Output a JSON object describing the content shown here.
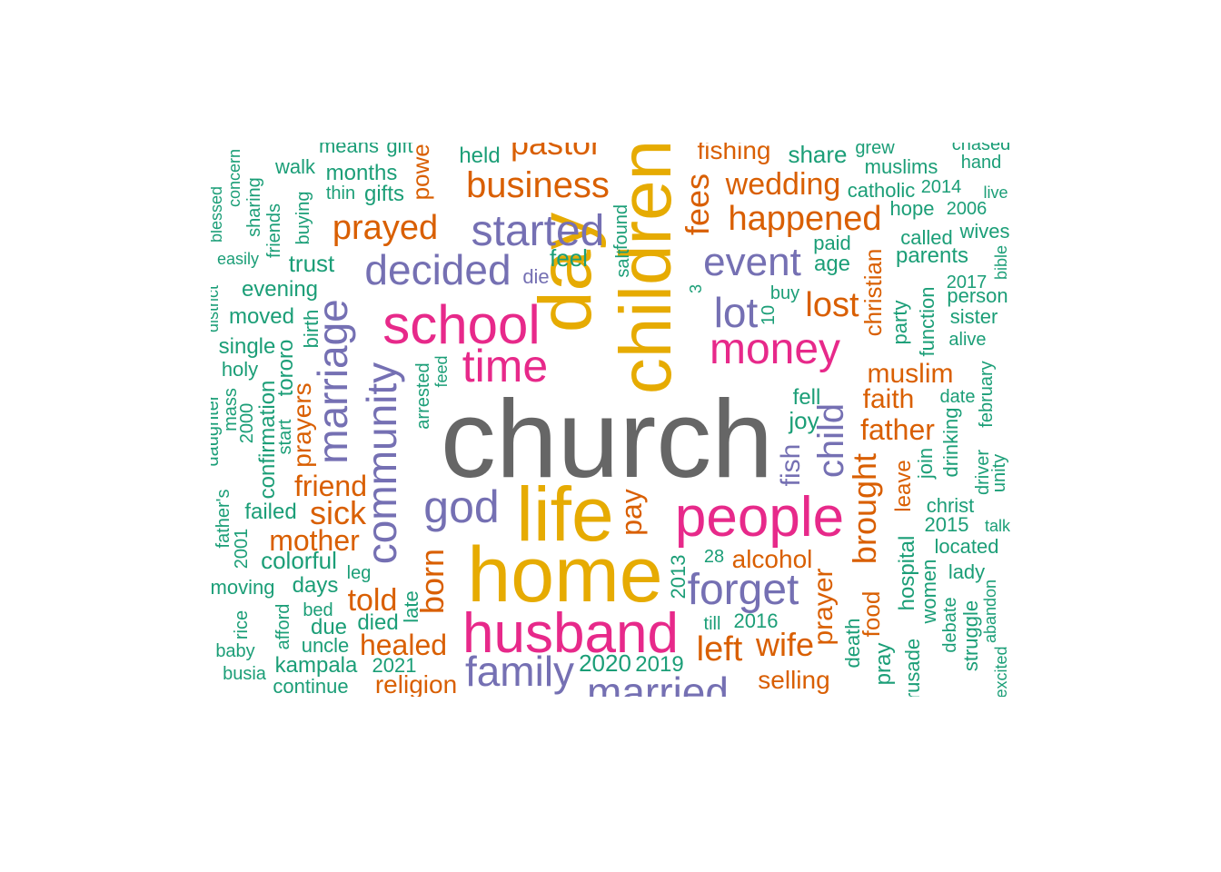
{
  "chart_data": {
    "type": "wordcloud",
    "title": "",
    "colors": {
      "gray": "#666666",
      "orange": "#D95F02",
      "purple": "#7570B3",
      "pink": "#E7298A",
      "gold": "#E6AB02",
      "green": "#1B9E77"
    },
    "words": [
      {
        "text": "church",
        "weight": 100,
        "color": "gray"
      },
      {
        "text": "home",
        "weight": 68,
        "color": "gold"
      },
      {
        "text": "life",
        "weight": 64,
        "color": "gold"
      },
      {
        "text": "day",
        "weight": 62,
        "color": "gold"
      },
      {
        "text": "children",
        "weight": 60,
        "color": "gold"
      },
      {
        "text": "husband",
        "weight": 52,
        "color": "pink"
      },
      {
        "text": "people",
        "weight": 52,
        "color": "pink"
      },
      {
        "text": "school",
        "weight": 50,
        "color": "pink"
      },
      {
        "text": "money",
        "weight": 42,
        "color": "pink"
      },
      {
        "text": "time",
        "weight": 42,
        "color": "pink"
      },
      {
        "text": "community",
        "weight": 42,
        "color": "purple"
      },
      {
        "text": "marriage",
        "weight": 42,
        "color": "purple"
      },
      {
        "text": "god",
        "weight": 40,
        "color": "purple"
      },
      {
        "text": "family",
        "weight": 40,
        "color": "purple"
      },
      {
        "text": "forget",
        "weight": 40,
        "color": "purple"
      },
      {
        "text": "decided",
        "weight": 40,
        "color": "purple"
      },
      {
        "text": "started",
        "weight": 40,
        "color": "purple"
      },
      {
        "text": "event",
        "weight": 38,
        "color": "purple"
      },
      {
        "text": "married",
        "weight": 38,
        "color": "purple"
      },
      {
        "text": "lot",
        "weight": 38,
        "color": "purple"
      },
      {
        "text": "child",
        "weight": 36,
        "color": "purple"
      },
      {
        "text": "business",
        "weight": 32,
        "color": "orange"
      },
      {
        "text": "happened",
        "weight": 32,
        "color": "orange"
      },
      {
        "text": "prayed",
        "weight": 32,
        "color": "orange"
      },
      {
        "text": "lost",
        "weight": 32,
        "color": "orange"
      },
      {
        "text": "pastor",
        "weight": 32,
        "color": "orange"
      },
      {
        "text": "sick",
        "weight": 30,
        "color": "orange"
      },
      {
        "text": "fees",
        "weight": 30,
        "color": "orange"
      },
      {
        "text": "left",
        "weight": 30,
        "color": "orange"
      },
      {
        "text": "born",
        "weight": 30,
        "color": "orange"
      },
      {
        "text": "brought",
        "weight": 30,
        "color": "orange"
      },
      {
        "text": "wedding",
        "weight": 28,
        "color": "orange"
      },
      {
        "text": "mother",
        "weight": 28,
        "color": "orange"
      },
      {
        "text": "wife",
        "weight": 28,
        "color": "orange"
      },
      {
        "text": "told",
        "weight": 28,
        "color": "orange"
      },
      {
        "text": "father",
        "weight": 28,
        "color": "orange"
      },
      {
        "text": "friend",
        "weight": 28,
        "color": "orange"
      },
      {
        "text": "healed",
        "weight": 28,
        "color": "orange"
      },
      {
        "text": "pay",
        "weight": 28,
        "color": "orange"
      },
      {
        "text": "muslim",
        "weight": 26,
        "color": "orange"
      },
      {
        "text": "faith",
        "weight": 26,
        "color": "orange"
      },
      {
        "text": "alcohol",
        "weight": 26,
        "color": "orange"
      },
      {
        "text": "religion",
        "weight": 26,
        "color": "orange"
      },
      {
        "text": "prayer",
        "weight": 26,
        "color": "orange"
      },
      {
        "text": "prayers",
        "weight": 24,
        "color": "orange"
      },
      {
        "text": "selling",
        "weight": 24,
        "color": "orange"
      },
      {
        "text": "christian",
        "weight": 22,
        "color": "orange"
      },
      {
        "text": "fishing",
        "weight": 24,
        "color": "orange"
      },
      {
        "text": "power",
        "weight": 22,
        "color": "orange"
      },
      {
        "text": "leave",
        "weight": 22,
        "color": "orange"
      },
      {
        "text": "food",
        "weight": 22,
        "color": "orange"
      },
      {
        "text": "fish",
        "weight": 24,
        "color": "purple"
      },
      {
        "text": "share",
        "weight": 22,
        "color": "green"
      },
      {
        "text": "feel",
        "weight": 22,
        "color": "green"
      },
      {
        "text": "die",
        "weight": 20,
        "color": "purple"
      },
      {
        "text": "trust",
        "weight": 22,
        "color": "green"
      },
      {
        "text": "months",
        "weight": 22,
        "color": "green"
      },
      {
        "text": "gifts",
        "weight": 22,
        "color": "green"
      },
      {
        "text": "means",
        "weight": 20,
        "color": "green"
      },
      {
        "text": "gift",
        "weight": 20,
        "color": "green"
      },
      {
        "text": "held",
        "weight": 20,
        "color": "green"
      },
      {
        "text": "evening",
        "weight": 20,
        "color": "green"
      },
      {
        "text": "moved",
        "weight": 20,
        "color": "green"
      },
      {
        "text": "single",
        "weight": 20,
        "color": "green"
      },
      {
        "text": "holy",
        "weight": 18,
        "color": "green"
      },
      {
        "text": "walk",
        "weight": 18,
        "color": "green"
      },
      {
        "text": "colorful",
        "weight": 22,
        "color": "green"
      },
      {
        "text": "failed",
        "weight": 20,
        "color": "green"
      },
      {
        "text": "moving",
        "weight": 20,
        "color": "green"
      },
      {
        "text": "days",
        "weight": 20,
        "color": "green"
      },
      {
        "text": "due",
        "weight": 20,
        "color": "green"
      },
      {
        "text": "died",
        "weight": 20,
        "color": "green"
      },
      {
        "text": "kampala",
        "weight": 20,
        "color": "green"
      },
      {
        "text": "continue",
        "weight": 18,
        "color": "green"
      },
      {
        "text": "uncle",
        "weight": 18,
        "color": "green"
      },
      {
        "text": "bed",
        "weight": 18,
        "color": "green"
      },
      {
        "text": "baby",
        "weight": 18,
        "color": "green"
      },
      {
        "text": "busia",
        "weight": 18,
        "color": "green"
      },
      {
        "text": "leg",
        "weight": 18,
        "color": "green"
      },
      {
        "text": "late",
        "weight": 18,
        "color": "green"
      },
      {
        "text": "2021",
        "weight": 20,
        "color": "green"
      },
      {
        "text": "2020",
        "weight": 22,
        "color": "green"
      },
      {
        "text": "2019",
        "weight": 20,
        "color": "green"
      },
      {
        "text": "2016",
        "weight": 20,
        "color": "green"
      },
      {
        "text": "2015",
        "weight": 18,
        "color": "green"
      },
      {
        "text": "2014",
        "weight": 18,
        "color": "green"
      },
      {
        "text": "2017",
        "weight": 18,
        "color": "green"
      },
      {
        "text": "2006",
        "weight": 18,
        "color": "green"
      },
      {
        "text": "28",
        "weight": 18,
        "color": "green"
      },
      {
        "text": "till",
        "weight": 18,
        "color": "green"
      },
      {
        "text": "fell",
        "weight": 20,
        "color": "green"
      },
      {
        "text": "joy",
        "weight": 22,
        "color": "green"
      },
      {
        "text": "paid",
        "weight": 18,
        "color": "green"
      },
      {
        "text": "age",
        "weight": 20,
        "color": "green"
      },
      {
        "text": "buy",
        "weight": 18,
        "color": "green"
      },
      {
        "text": "grew",
        "weight": 18,
        "color": "green"
      },
      {
        "text": "muslims",
        "weight": 20,
        "color": "green"
      },
      {
        "text": "catholic",
        "weight": 20,
        "color": "green"
      },
      {
        "text": "hope",
        "weight": 20,
        "color": "green"
      },
      {
        "text": "called",
        "weight": 20,
        "color": "green"
      },
      {
        "text": "parents",
        "weight": 22,
        "color": "green"
      },
      {
        "text": "wives",
        "weight": 20,
        "color": "green"
      },
      {
        "text": "chased",
        "weight": 18,
        "color": "green"
      },
      {
        "text": "hand",
        "weight": 18,
        "color": "green"
      },
      {
        "text": "live",
        "weight": 18,
        "color": "green"
      },
      {
        "text": "person",
        "weight": 20,
        "color": "green"
      },
      {
        "text": "sister",
        "weight": 20,
        "color": "green"
      },
      {
        "text": "alive",
        "weight": 18,
        "color": "green"
      },
      {
        "text": "date",
        "weight": 18,
        "color": "green"
      },
      {
        "text": "christ",
        "weight": 20,
        "color": "green"
      },
      {
        "text": "located",
        "weight": 20,
        "color": "green"
      },
      {
        "text": "lady",
        "weight": 20,
        "color": "green"
      },
      {
        "text": "talk",
        "weight": 18,
        "color": "green"
      },
      {
        "text": "thin",
        "weight": 18,
        "color": "green"
      },
      {
        "text": "salt",
        "weight": 20,
        "color": "green"
      },
      {
        "text": "found",
        "weight": 20,
        "color": "green"
      },
      {
        "text": "blessed",
        "weight": 18,
        "color": "green"
      },
      {
        "text": "concern",
        "weight": 18,
        "color": "green"
      },
      {
        "text": "sharing",
        "weight": 18,
        "color": "green"
      },
      {
        "text": "friends",
        "weight": 18,
        "color": "green"
      },
      {
        "text": "buying",
        "weight": 18,
        "color": "green"
      },
      {
        "text": "easily",
        "weight": 18,
        "color": "green"
      },
      {
        "text": "district",
        "weight": 18,
        "color": "green"
      },
      {
        "text": "birth",
        "weight": 20,
        "color": "green"
      },
      {
        "text": "tororo",
        "weight": 20,
        "color": "green"
      },
      {
        "text": "daughter",
        "weight": 18,
        "color": "green"
      },
      {
        "text": "mass",
        "weight": 18,
        "color": "green"
      },
      {
        "text": "2000",
        "weight": 18,
        "color": "green"
      },
      {
        "text": "confirmation",
        "weight": 20,
        "color": "green"
      },
      {
        "text": "start",
        "weight": 18,
        "color": "green"
      },
      {
        "text": "father's",
        "weight": 18,
        "color": "green"
      },
      {
        "text": "2001",
        "weight": 18,
        "color": "green"
      },
      {
        "text": "rice",
        "weight": 18,
        "color": "green"
      },
      {
        "text": "afford",
        "weight": 18,
        "color": "green"
      },
      {
        "text": "arrested",
        "weight": 18,
        "color": "green"
      },
      {
        "text": "feed",
        "weight": 18,
        "color": "green"
      },
      {
        "text": "2013",
        "weight": 20,
        "color": "green"
      },
      {
        "text": "10",
        "weight": 18,
        "color": "green"
      },
      {
        "text": "3",
        "weight": 18,
        "color": "green"
      },
      {
        "text": "party",
        "weight": 20,
        "color": "green"
      },
      {
        "text": "function",
        "weight": 20,
        "color": "green"
      },
      {
        "text": "february",
        "weight": 18,
        "color": "green"
      },
      {
        "text": "bible",
        "weight": 18,
        "color": "green"
      },
      {
        "text": "join",
        "weight": 20,
        "color": "green"
      },
      {
        "text": "drinking",
        "weight": 20,
        "color": "green"
      },
      {
        "text": "driver",
        "weight": 18,
        "color": "green"
      },
      {
        "text": "unity",
        "weight": 18,
        "color": "green"
      },
      {
        "text": "hospital",
        "weight": 22,
        "color": "green"
      },
      {
        "text": "women",
        "weight": 20,
        "color": "green"
      },
      {
        "text": "debate",
        "weight": 18,
        "color": "green"
      },
      {
        "text": "struggle",
        "weight": 20,
        "color": "green"
      },
      {
        "text": "abandon",
        "weight": 18,
        "color": "green"
      },
      {
        "text": "death",
        "weight": 20,
        "color": "green"
      },
      {
        "text": "pray",
        "weight": 20,
        "color": "green"
      },
      {
        "text": "crusade",
        "weight": 20,
        "color": "green"
      },
      {
        "text": "excited",
        "weight": 18,
        "color": "green"
      }
    ]
  }
}
